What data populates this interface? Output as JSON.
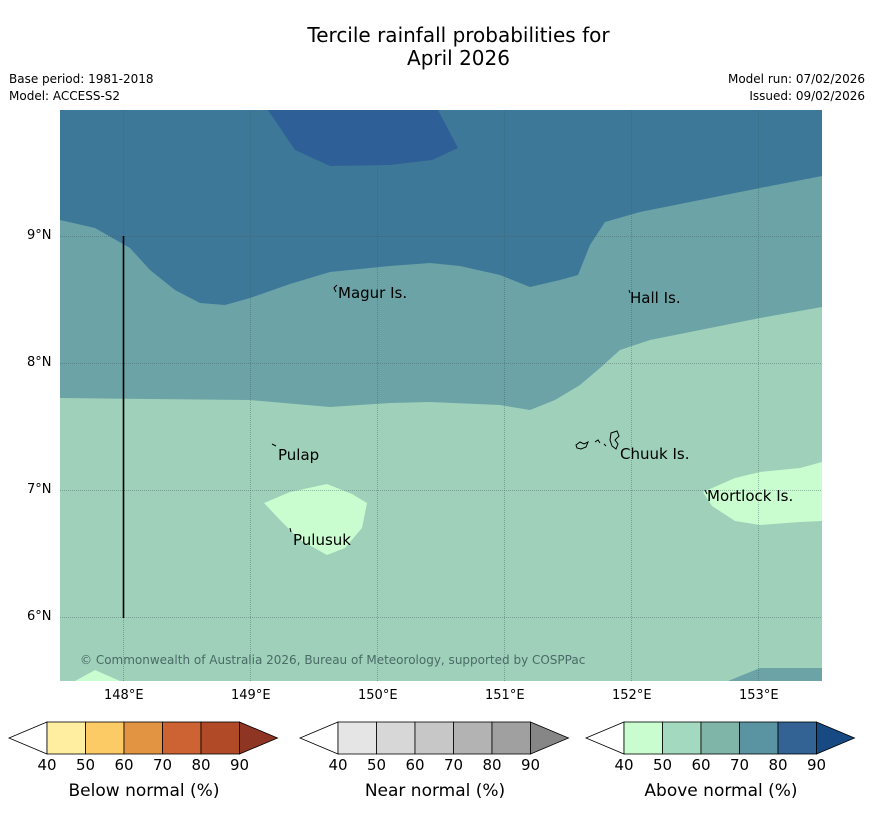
{
  "title": {
    "line1": "Tercile rainfall probabilities for",
    "line2": "April 2026"
  },
  "meta": {
    "base_period": "Base period: 1981-2018",
    "model": "Model: ACCESS-S2",
    "model_run": "Model run: 07/02/2026",
    "issued": "Issued: 09/02/2026"
  },
  "map": {
    "lon_ticks": [
      "148°E",
      "149°E",
      "150°E",
      "151°E",
      "152°E",
      "153°E"
    ],
    "lat_ticks": [
      "9°N",
      "8°N",
      "7°N",
      "6°N"
    ],
    "islands": [
      "Magur Is.",
      "Hall Is.",
      "Pulap",
      "Chuuk Is.",
      "Mortlock Is.",
      "Pulusuk"
    ],
    "copyright": "© Commonwealth of Australia 2026, Bureau of Meteorology, supported by COSPPac"
  },
  "colorbars": [
    {
      "label": "Below normal (%)",
      "ticks": [
        "40",
        "50",
        "60",
        "70",
        "80",
        "90"
      ],
      "colors": [
        "#ffeda0",
        "#fdcb66",
        "#e39443",
        "#cd6232",
        "#b14a26",
        "#8e3523"
      ]
    },
    {
      "label": "Near normal (%)",
      "ticks": [
        "40",
        "50",
        "60",
        "70",
        "80",
        "90"
      ],
      "colors": [
        "#e5e5e5",
        "#d7d7d7",
        "#c7c7c7",
        "#b3b3b3",
        "#a0a0a0",
        "#868686"
      ]
    },
    {
      "label": "Above normal (%)",
      "ticks": [
        "40",
        "50",
        "60",
        "70",
        "80",
        "90"
      ],
      "colors": [
        "#c9fcce",
        "#a3d9be",
        "#7fb4a8",
        "#5a93a2",
        "#336294",
        "#174a82"
      ]
    }
  ],
  "palette": {
    "above_50": "#9ed0ba",
    "above_60": "#6ba3a6",
    "above_70": "#3e7899",
    "above_80": "#2e6097",
    "above_40": "#c9fcce"
  }
}
